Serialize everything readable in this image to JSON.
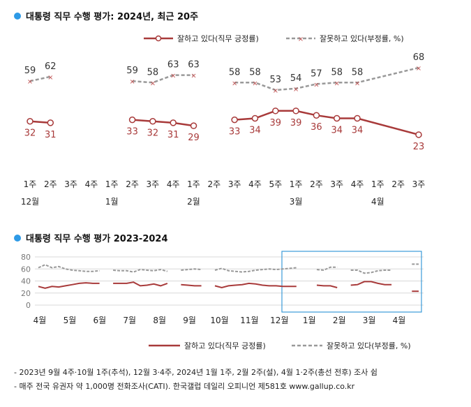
{
  "chart1_title": "대통령 직무 수행 평가: 2024년, 최근 20주",
  "chart2_title": "대통령 직무 수행 평가 2023-2024",
  "legend": {
    "positive": "잘하고 있다(직무 긍정률)",
    "negative": "잘못하고 있다(부정률, %)"
  },
  "colors": {
    "positive": "#a83a3a",
    "negative": "#999999",
    "bullet": "#2e9ae6",
    "highlight": "#3b9bd9"
  },
  "footnotes": [
    "- 2023년 9월 4주·10월 1주(추석), 12월 3·4주, 2024년 1월 1주, 2월 2주(설), 4월 1·2주(총선 전후) 조사 쉼",
    "- 매주 전국 유권자 약 1,000명 전화조사(CATI). 한국갤럽 데일리 오피니언 제581호 www.gallup.co.kr"
  ],
  "chart_data": [
    {
      "type": "line",
      "title": "대통령 직무 수행 평가: 2024년, 최근 20주",
      "x": [
        "1주",
        "2주",
        "3주",
        "4주",
        "1주",
        "2주",
        "3주",
        "4주",
        "1주",
        "2주",
        "3주",
        "4주",
        "5주",
        "1주",
        "2주",
        "3주",
        "4주",
        "1주",
        "2주",
        "3주"
      ],
      "month_labels": [
        {
          "index": 0,
          "label": "12월"
        },
        {
          "index": 4,
          "label": "1월"
        },
        {
          "index": 8,
          "label": "2월"
        },
        {
          "index": 13,
          "label": "3월"
        },
        {
          "index": 17,
          "label": "4월"
        }
      ],
      "series": [
        {
          "name": "잘하고 있다(직무 긍정률)",
          "values": [
            32,
            31,
            null,
            null,
            null,
            33,
            32,
            31,
            29,
            null,
            33,
            34,
            39,
            39,
            36,
            34,
            34,
            null,
            null,
            23
          ]
        },
        {
          "name": "잘못하고 있다(부정률, %)",
          "values": [
            59,
            62,
            null,
            null,
            null,
            59,
            58,
            63,
            63,
            null,
            58,
            58,
            53,
            54,
            57,
            58,
            58,
            null,
            null,
            68
          ]
        }
      ],
      "ylim": [
        0,
        80
      ]
    },
    {
      "type": "line",
      "title": "대통령 직무 수행 평가 2023-2024",
      "x_month_labels": [
        "4월",
        "5월",
        "6월",
        "7월",
        "8월",
        "9월",
        "10월",
        "11월",
        "12월",
        "1월",
        "2월",
        "3월",
        "4월"
      ],
      "y_ticks": [
        0,
        20,
        40,
        60,
        80
      ],
      "ylim": [
        0,
        80
      ],
      "series": [
        {
          "name": "잘하고 있다(직무 긍정률)",
          "values": [
            31,
            28,
            31,
            30,
            32,
            34,
            36,
            37,
            36,
            36,
            null,
            36,
            36,
            36,
            38,
            32,
            33,
            35,
            32,
            36,
            null,
            34,
            33,
            32,
            32,
            null,
            32,
            29,
            32,
            33,
            34,
            36,
            35,
            33,
            32,
            32,
            31,
            31,
            31,
            null,
            null,
            33,
            32,
            32,
            29,
            null,
            33,
            34,
            39,
            39,
            36,
            34,
            34,
            null,
            null,
            23,
            23
          ]
        },
        {
          "name": "잘못하고 있다(부정률, %)",
          "values": [
            62,
            67,
            62,
            64,
            60,
            58,
            57,
            56,
            56,
            57,
            null,
            58,
            57,
            57,
            55,
            59,
            58,
            57,
            59,
            56,
            null,
            58,
            59,
            60,
            59,
            null,
            58,
            61,
            57,
            56,
            55,
            56,
            58,
            59,
            60,
            59,
            60,
            61,
            62,
            null,
            null,
            59,
            58,
            63,
            63,
            null,
            58,
            58,
            53,
            54,
            57,
            58,
            58,
            null,
            null,
            68,
            68
          ]
        }
      ]
    }
  ]
}
